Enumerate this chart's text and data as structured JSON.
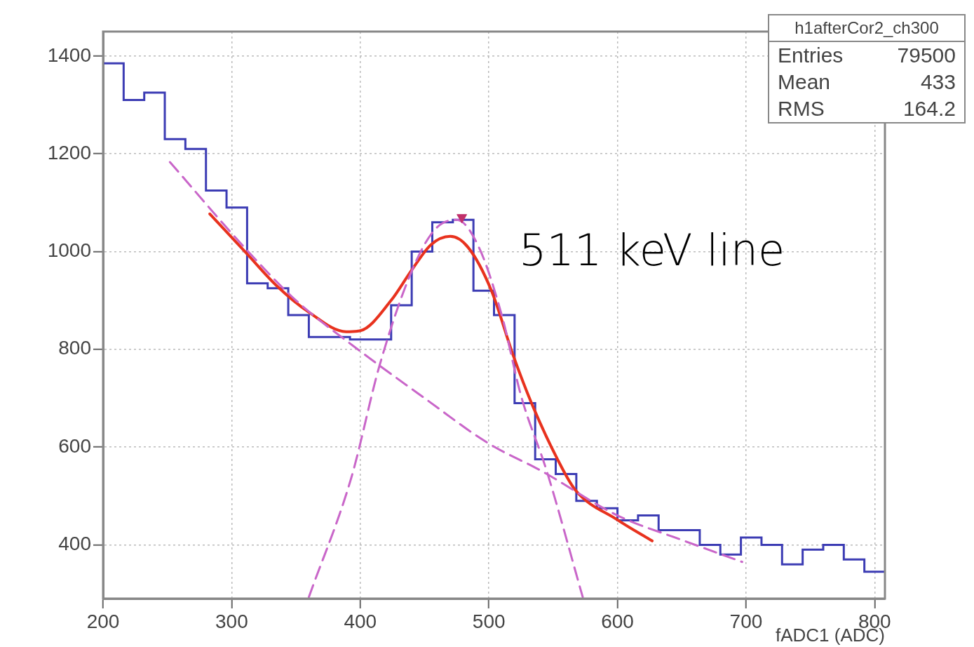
{
  "chart_data": {
    "type": "histogram",
    "xlabel": "fADC1 (ADC)",
    "xlim": [
      200,
      808
    ],
    "ylim": [
      290,
      1450
    ],
    "xticks": [
      200,
      300,
      400,
      500,
      600,
      700,
      800
    ],
    "yticks": [
      400,
      600,
      800,
      1000,
      1200,
      1400
    ],
    "grid": true,
    "legend": false,
    "annotations": [
      "h1afterCor2_ch300",
      "Entries 79500",
      "Mean 433",
      "RMS 164.2",
      "511 keV line"
    ],
    "series": [
      {
        "color": "#3c3cb4",
        "bins": [
          200,
          216,
          232,
          248,
          264,
          280,
          296,
          312,
          328,
          344,
          360,
          376,
          392,
          408,
          424,
          440,
          456,
          472,
          488,
          504,
          520,
          536,
          552,
          568,
          584,
          600,
          616,
          632,
          648,
          664,
          680,
          696,
          712,
          728,
          744,
          760,
          776,
          792,
          808
        ],
        "values": [
          1385,
          1310,
          1325,
          1230,
          1210,
          1125,
          1090,
          935,
          925,
          870,
          825,
          825,
          820,
          820,
          890,
          1000,
          1060,
          1065,
          920,
          870,
          690,
          575,
          545,
          490,
          475,
          450,
          460,
          430,
          430,
          400,
          380,
          415,
          400,
          360,
          390,
          400,
          370,
          345
        ]
      },
      {
        "type": "line",
        "color": "#c966c9",
        "line_style": "dashed",
        "x": [
          252,
          309,
          350,
          394,
          450,
          500,
          541,
          600,
          650,
          697
        ],
        "values": [
          1183,
          1011,
          900,
          808,
          700,
          607,
          551,
          460,
          410,
          365
        ]
      },
      {
        "type": "line",
        "color": "#c966c9",
        "line_style": "dashed",
        "x": [
          360,
          393,
          415,
          440,
          458,
          475,
          492,
          510,
          525,
          545,
          573
        ],
        "values": [
          293,
          537,
          767,
          960,
          1045,
          1065,
          1010,
          870,
          705,
          551,
          293
        ]
      },
      {
        "type": "line",
        "color": "#e8321e",
        "line_style": "solid",
        "x": [
          283,
          311,
          335,
          360,
          389,
          400,
          424,
          440,
          455,
          470,
          484,
          502,
          519,
          533,
          553,
          567,
          600,
          627
        ],
        "values": [
          1077,
          998,
          930,
          876,
          836,
          838,
          900,
          962,
          1014,
          1031,
          1008,
          920,
          787,
          691,
          577,
          513,
          451,
          408
        ]
      },
      {
        "type": "scatter",
        "color": "#c0306a",
        "marker": "triangle",
        "x": [
          479
        ],
        "values": [
          1070
        ]
      }
    ]
  }
}
